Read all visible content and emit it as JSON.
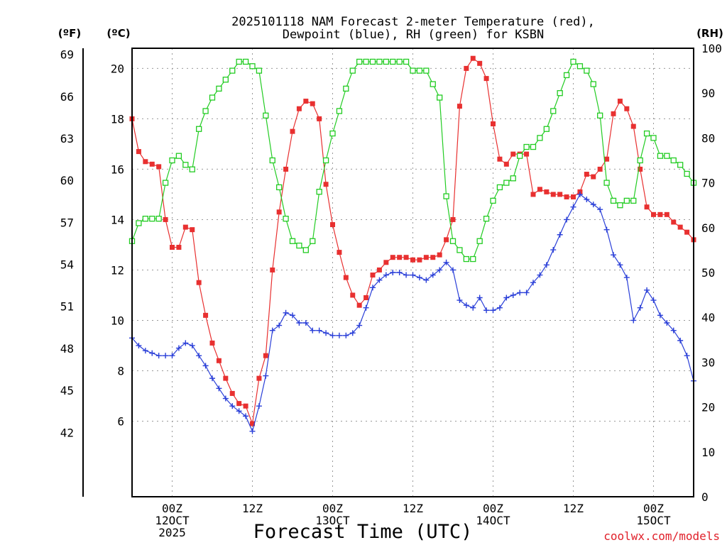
{
  "chart_data": {
    "type": "line",
    "title_line1": "2025101118 NAM Forecast 2-meter Temperature (red),",
    "title_line2": "Dewpoint (blue), RH (green) for KSBN",
    "xlabel": "Forecast Time (UTC)",
    "credit": "coolwx.com/models",
    "axis_units": {
      "fahrenheit": "(ºF)",
      "celsius": "(ºC)",
      "rh": "(RH)"
    },
    "colors": {
      "temperature": "#e83030",
      "dewpoint": "#2a3fd8",
      "rh": "#22cc22"
    },
    "hours": [
      0,
      1,
      2,
      3,
      4,
      5,
      6,
      7,
      8,
      9,
      10,
      11,
      12,
      13,
      14,
      15,
      16,
      17,
      18,
      19,
      20,
      21,
      22,
      23,
      24,
      25,
      26,
      27,
      28,
      29,
      30,
      31,
      32,
      33,
      34,
      35,
      36,
      37,
      38,
      39,
      40,
      41,
      42,
      43,
      44,
      45,
      46,
      47,
      48,
      49,
      50,
      51,
      52,
      53,
      54,
      55,
      56,
      57,
      58,
      59,
      60,
      61,
      62,
      63,
      64,
      65,
      66,
      67,
      68,
      69,
      70,
      71,
      72,
      73,
      74,
      75,
      76,
      77,
      78,
      79,
      80,
      81,
      82,
      83,
      84
    ],
    "xlim": [
      0,
      84
    ],
    "celsius_ylim": [
      3,
      20.8
    ],
    "rh_ylim": [
      0,
      100
    ],
    "celsius_ticks": [
      6,
      8,
      10,
      12,
      14,
      16,
      18,
      20
    ],
    "fahrenheit_ticks": [
      42,
      45,
      48,
      51,
      54,
      57,
      60,
      63,
      66,
      69
    ],
    "rh_ticks": [
      0,
      10,
      20,
      30,
      40,
      50,
      60,
      70,
      80,
      90,
      100
    ],
    "x_ticks": [
      {
        "hour": 6,
        "lines": [
          "00Z",
          "12OCT",
          "2025"
        ]
      },
      {
        "hour": 18,
        "lines": [
          "12Z"
        ]
      },
      {
        "hour": 30,
        "lines": [
          "00Z",
          "13OCT"
        ]
      },
      {
        "hour": 42,
        "lines": [
          "12Z"
        ]
      },
      {
        "hour": 54,
        "lines": [
          "00Z",
          "14OCT"
        ]
      },
      {
        "hour": 66,
        "lines": [
          "12Z"
        ]
      },
      {
        "hour": 78,
        "lines": [
          "00Z",
          "15OCT"
        ]
      }
    ],
    "series": [
      {
        "name": "Temperature (°C)",
        "key": "temperature",
        "marker": "filled-square",
        "values": [
          18.0,
          16.7,
          16.3,
          16.2,
          16.1,
          14.0,
          12.9,
          12.9,
          13.7,
          13.6,
          11.5,
          10.2,
          9.1,
          8.4,
          7.7,
          7.1,
          6.7,
          6.6,
          5.9,
          7.7,
          8.6,
          12.0,
          14.3,
          16.0,
          17.5,
          18.4,
          18.7,
          18.6,
          18.0,
          15.4,
          13.8,
          12.7,
          11.7,
          11.0,
          10.6,
          10.9,
          11.8,
          12.0,
          12.3,
          12.5,
          12.5,
          12.5,
          12.4,
          12.4,
          12.5,
          12.5,
          12.6,
          13.2,
          14.0,
          18.5,
          20.0,
          20.4,
          20.2,
          19.6,
          17.8,
          16.4,
          16.2,
          16.6,
          16.6,
          16.6,
          15.0,
          15.2,
          15.1,
          15.0,
          15.0,
          14.9,
          14.9,
          15.1,
          15.8,
          15.7,
          16.0,
          16.4,
          18.2,
          18.7,
          18.4,
          17.7,
          16.0,
          14.5,
          14.2,
          14.2,
          14.2,
          13.9,
          13.7,
          13.5,
          13.2
        ]
      },
      {
        "name": "Dewpoint (°C)",
        "key": "dewpoint",
        "marker": "plus",
        "values": [
          9.3,
          9.0,
          8.8,
          8.7,
          8.6,
          8.6,
          8.6,
          8.9,
          9.1,
          9.0,
          8.6,
          8.2,
          7.7,
          7.3,
          6.9,
          6.6,
          6.4,
          6.2,
          5.6,
          6.6,
          7.8,
          9.6,
          9.8,
          10.3,
          10.2,
          9.9,
          9.9,
          9.6,
          9.6,
          9.5,
          9.4,
          9.4,
          9.4,
          9.5,
          9.8,
          10.5,
          11.3,
          11.6,
          11.8,
          11.9,
          11.9,
          11.8,
          11.8,
          11.7,
          11.6,
          11.8,
          12.0,
          12.3,
          12.0,
          10.8,
          10.6,
          10.5,
          10.9,
          10.4,
          10.4,
          10.5,
          10.9,
          11.0,
          11.1,
          11.1,
          11.5,
          11.8,
          12.2,
          12.8,
          13.4,
          14.0,
          14.5,
          15.0,
          14.8,
          14.6,
          14.4,
          13.6,
          12.6,
          12.2,
          11.7,
          10.0,
          10.5,
          11.2,
          10.8,
          10.2,
          9.9,
          9.6,
          9.2,
          8.6,
          7.6
        ]
      },
      {
        "name": "RH (%)",
        "key": "rh",
        "marker": "open-square",
        "values": [
          57,
          61,
          62,
          62,
          62,
          70,
          75,
          76,
          74,
          73,
          82,
          86,
          89,
          91,
          93,
          95,
          97,
          97,
          96,
          95,
          85,
          75,
          69,
          62,
          57,
          56,
          55,
          57,
          68,
          75,
          81,
          86,
          91,
          95,
          97,
          97,
          97,
          97,
          97,
          97,
          97,
          97,
          95,
          95,
          95,
          92,
          89,
          67,
          57,
          55,
          53,
          53,
          57,
          62,
          66,
          69,
          70,
          71,
          76,
          78,
          78,
          80,
          82,
          86,
          90,
          94,
          97,
          96,
          95,
          92,
          85,
          70,
          66,
          65,
          66,
          66,
          75,
          81,
          80,
          76,
          76,
          75,
          74,
          72,
          70
        ]
      }
    ]
  }
}
